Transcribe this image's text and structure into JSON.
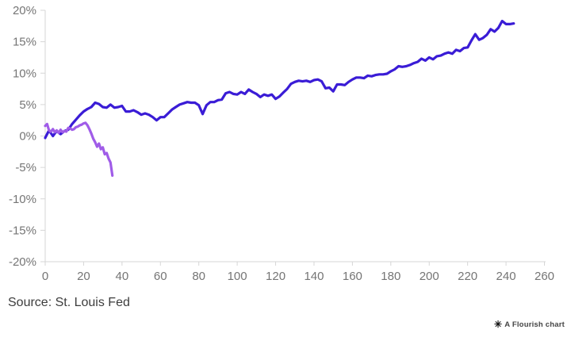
{
  "chart_data": {
    "type": "line",
    "title": "",
    "xlabel": "",
    "ylabel": "",
    "grid": false,
    "legend": "none",
    "background": "#ffffff",
    "axis_color": "#d6d6d6",
    "tick_label_color": "#757575",
    "x_axis": {
      "min": 0,
      "max": 260,
      "ticks": [
        0,
        20,
        40,
        60,
        80,
        100,
        120,
        140,
        160,
        180,
        200,
        220,
        240,
        260
      ]
    },
    "y_axis": {
      "min": -20,
      "max": 20,
      "ticks": [
        20,
        15,
        10,
        5,
        0,
        -5,
        -10,
        -15,
        -20
      ],
      "tick_suffix": "%"
    },
    "series": [
      {
        "id": "line-dark-blue",
        "color": "#3a1cd6",
        "x_start": 0,
        "x_step": 2,
        "values": [
          -0.3,
          0.9,
          0.0,
          0.8,
          0.3,
          0.8,
          1.0,
          1.9,
          2.6,
          3.3,
          3.9,
          4.3,
          4.6,
          5.3,
          5.1,
          4.6,
          4.5,
          5.0,
          4.5,
          4.6,
          4.8,
          3.9,
          3.9,
          4.1,
          3.8,
          3.4,
          3.6,
          3.4,
          3.0,
          2.5,
          3.0,
          3.0,
          3.6,
          4.2,
          4.6,
          5.0,
          5.2,
          5.4,
          5.3,
          5.3,
          4.9,
          3.5,
          4.9,
          5.4,
          5.4,
          5.7,
          5.8,
          6.8,
          7.0,
          6.7,
          6.6,
          7.0,
          6.7,
          7.4,
          7.0,
          6.7,
          6.2,
          6.6,
          6.4,
          6.6,
          5.9,
          6.3,
          6.9,
          7.5,
          8.3,
          8.6,
          8.8,
          8.7,
          8.8,
          8.6,
          8.9,
          9.0,
          8.7,
          7.6,
          7.7,
          7.1,
          8.2,
          8.2,
          8.1,
          8.6,
          9.0,
          9.3,
          9.3,
          9.2,
          9.6,
          9.5,
          9.7,
          9.8,
          9.8,
          9.9,
          10.3,
          10.6,
          11.1,
          11.0,
          11.1,
          11.3,
          11.6,
          11.8,
          12.3,
          12.0,
          12.5,
          12.2,
          12.7,
          12.8,
          13.1,
          13.3,
          13.1,
          13.7,
          13.5,
          14.0,
          14.1,
          15.2,
          16.2,
          15.3,
          15.6,
          16.1,
          17.0,
          16.6,
          17.2,
          18.3,
          17.8,
          17.8,
          17.9
        ]
      },
      {
        "id": "line-light-purple",
        "color": "#a05ce8",
        "x_start": 0,
        "x_step": 1,
        "values": [
          1.6,
          1.9,
          0.9,
          0.7,
          1.1,
          0.6,
          0.9,
          0.5,
          1.0,
          0.6,
          0.8,
          0.7,
          1.3,
          1.2,
          1.0,
          1.1,
          1.4,
          1.5,
          1.7,
          1.8,
          2.0,
          2.1,
          1.7,
          1.1,
          0.4,
          -0.4,
          -1.0,
          -1.7,
          -1.2,
          -2.1,
          -1.8,
          -2.9,
          -2.7,
          -3.6,
          -4.2,
          -6.3
        ]
      }
    ]
  },
  "footer": {
    "source": "Source: St. Louis Fed",
    "credit_icon": "✳",
    "credit_text": "A Flourish chart"
  }
}
